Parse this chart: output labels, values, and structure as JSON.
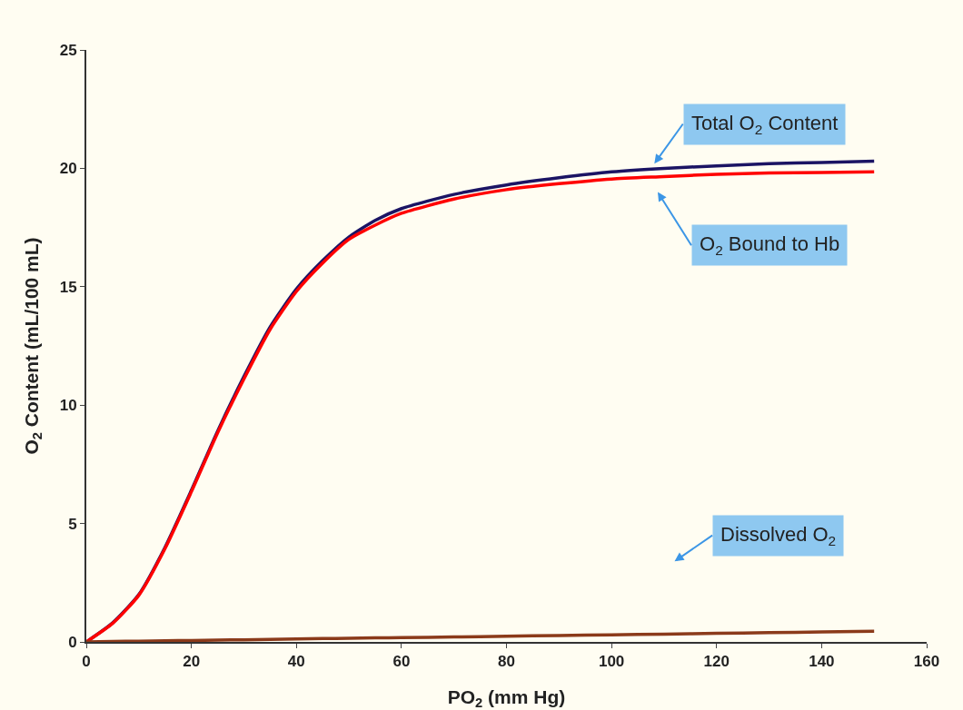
{
  "chart_data": {
    "type": "line",
    "xlabel": "PO$_{2}$ (mm Hg)",
    "ylabel": "O$_{2}$ Content (mL/100 mL)",
    "x": [
      0,
      5,
      10,
      15,
      20,
      25,
      30,
      35,
      40,
      45,
      50,
      55,
      60,
      70,
      80,
      90,
      100,
      110,
      120,
      130,
      140,
      150
    ],
    "series": [
      {
        "color": "#1b1464",
        "values": [
          0,
          0.8,
          2.0,
          4.0,
          6.4,
          8.9,
          11.2,
          13.3,
          14.9,
          16.1,
          17.1,
          17.8,
          18.3,
          18.9,
          19.3,
          19.6,
          19.85,
          20.0,
          20.1,
          20.2,
          20.25,
          20.3
        ]
      },
      {
        "color": "#ff0000",
        "values": [
          0,
          0.78,
          1.97,
          3.95,
          6.34,
          8.83,
          11.1,
          13.2,
          14.8,
          16.0,
          17.0,
          17.6,
          18.1,
          18.7,
          19.1,
          19.35,
          19.55,
          19.65,
          19.75,
          19.8,
          19.82,
          19.85
        ]
      },
      {
        "color": "#8b3a1a",
        "values": [
          0,
          0.02,
          0.03,
          0.05,
          0.06,
          0.08,
          0.09,
          0.11,
          0.12,
          0.14,
          0.15,
          0.17,
          0.18,
          0.21,
          0.24,
          0.27,
          0.3,
          0.33,
          0.36,
          0.39,
          0.42,
          0.45
        ]
      }
    ],
    "annotations": [
      "Total O$_{2}$ Content",
      "O$_{2}$ Bound to Hb",
      "Dissolved O$_{2}$"
    ],
    "xlim": [
      0,
      160
    ],
    "xticks": [
      0,
      20,
      40,
      60,
      80,
      100,
      120,
      140,
      160
    ],
    "ylim": [
      0,
      25
    ],
    "yticks": [
      0,
      5,
      10,
      15,
      20,
      25
    ],
    "grid": false,
    "line_style": "solid",
    "marker": "none"
  }
}
